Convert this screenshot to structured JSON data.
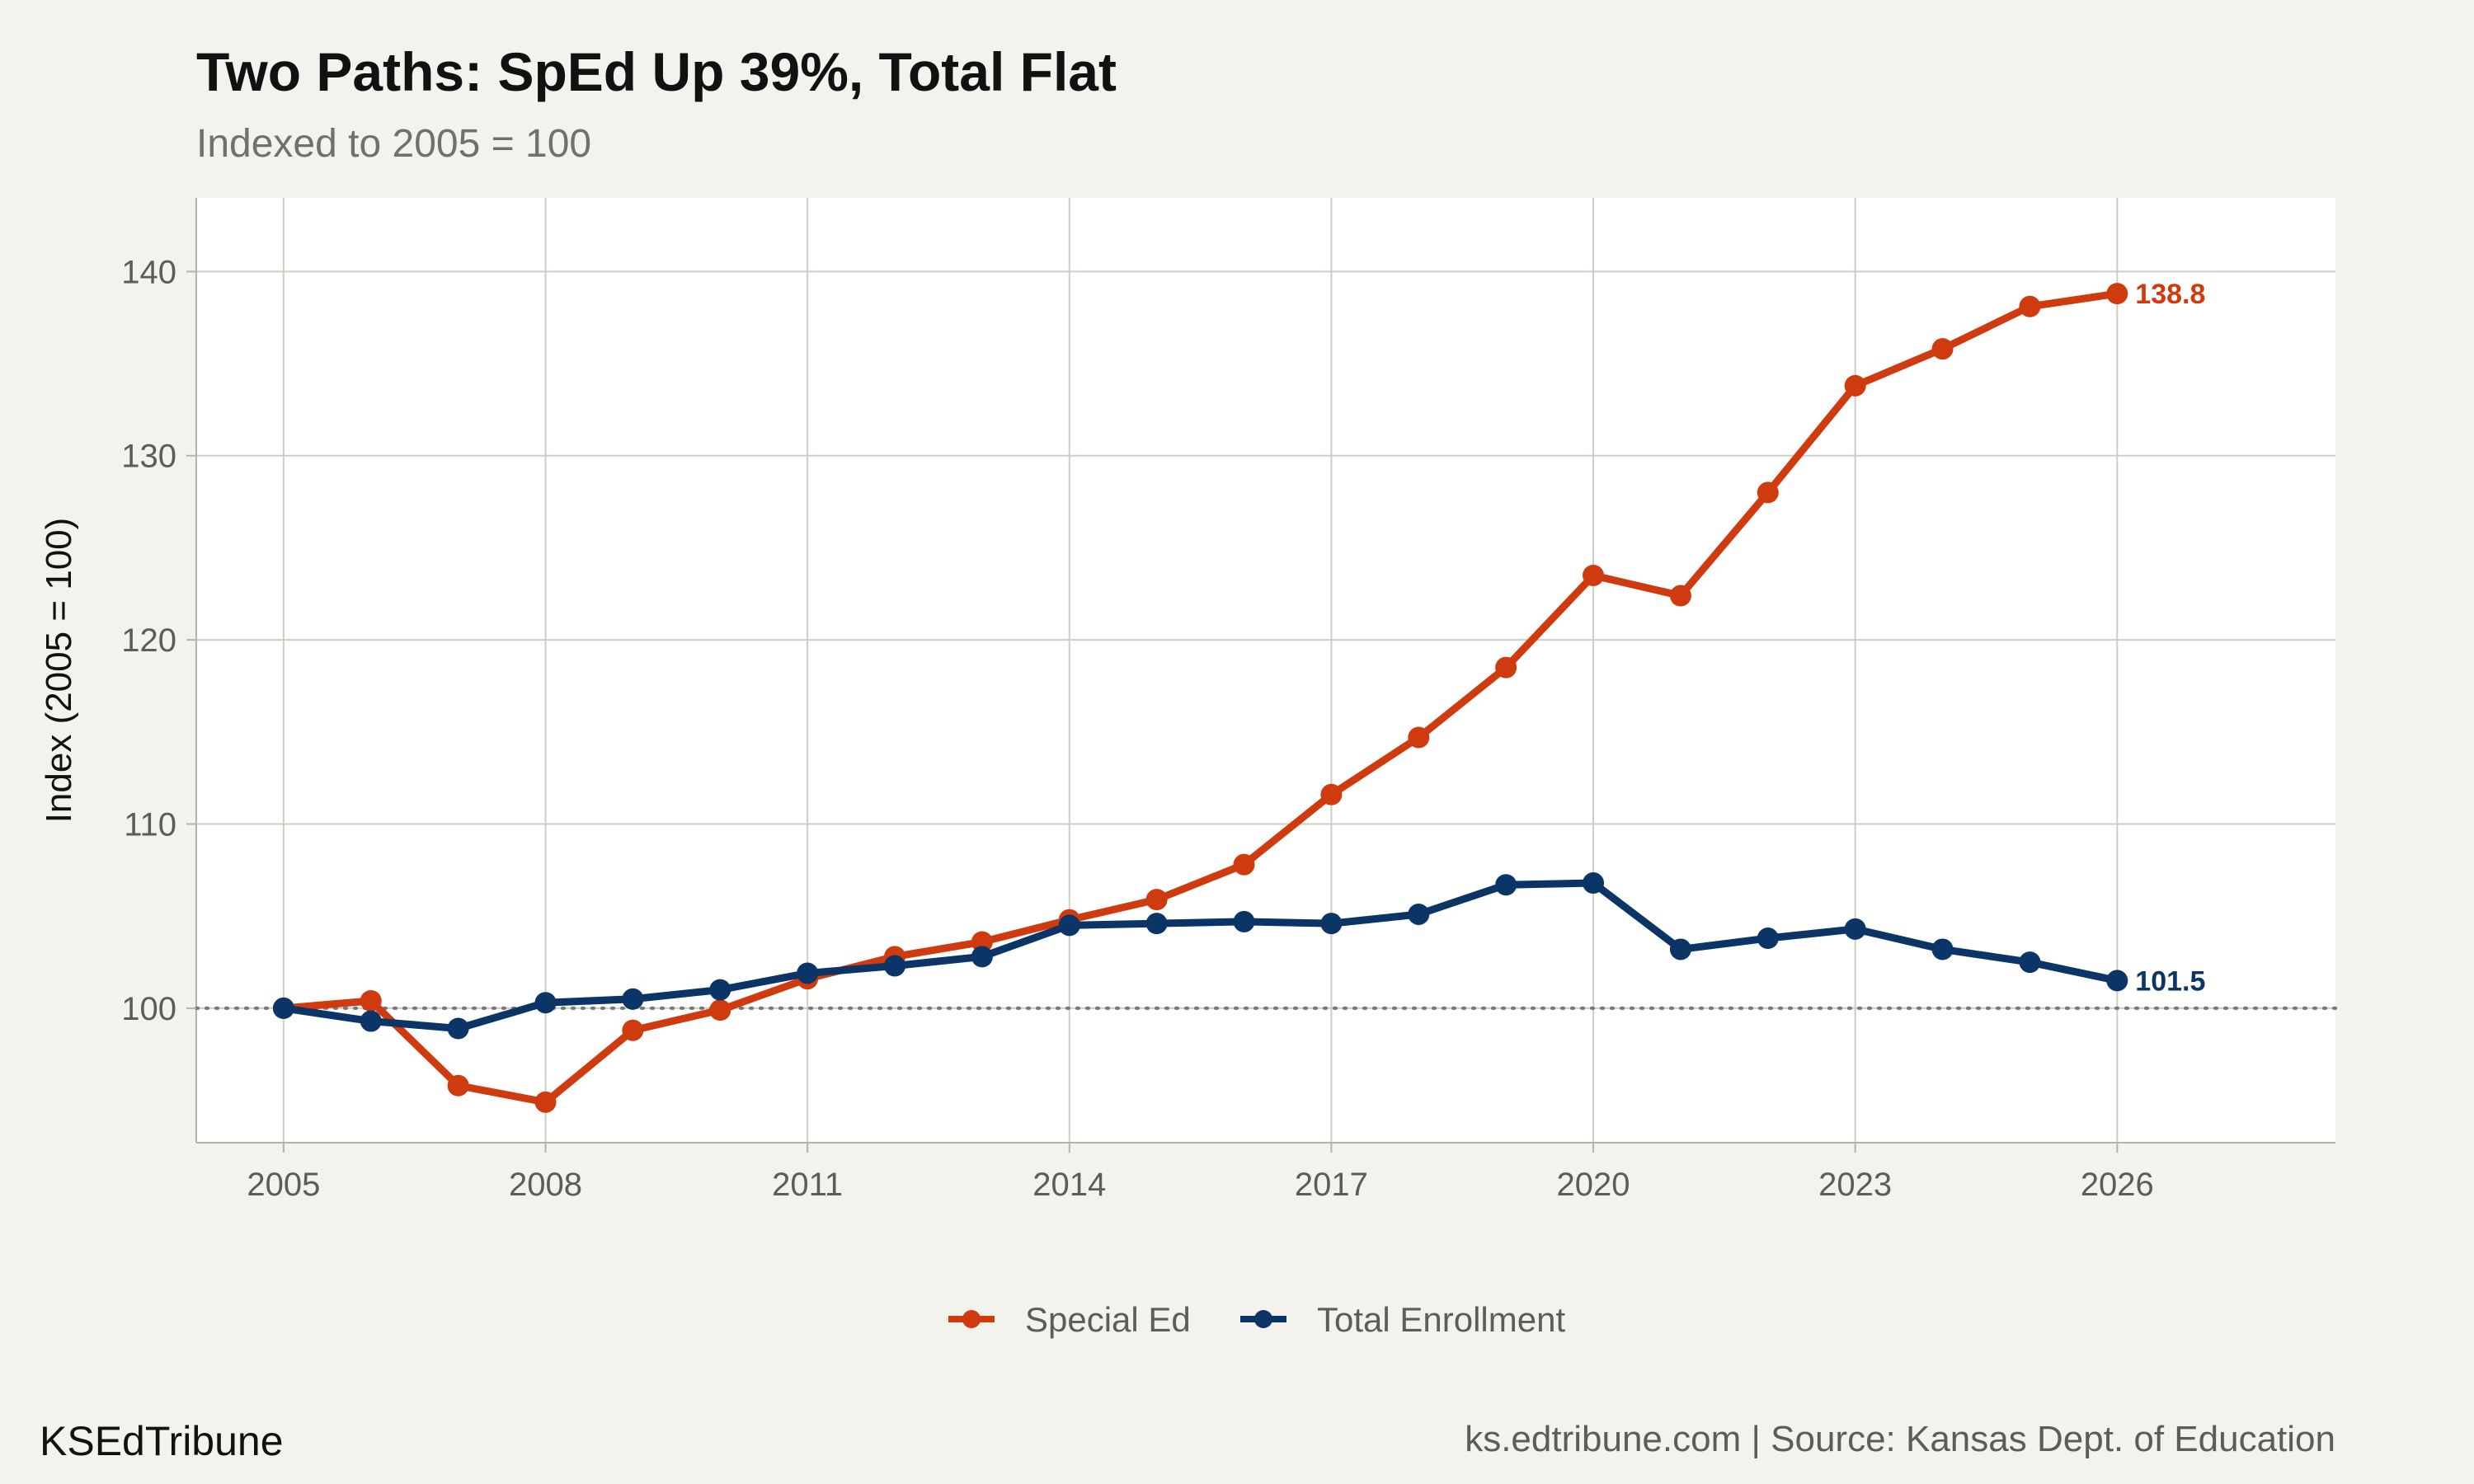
{
  "chart_data": {
    "type": "line",
    "title": "Two Paths: SpEd Up 39%, Total Flat",
    "subtitle": "Indexed to 2005 = 100",
    "ylabel": "Index (2005 = 100)",
    "xlabel": "",
    "x": [
      2005,
      2006,
      2007,
      2008,
      2009,
      2010,
      2011,
      2012,
      2013,
      2014,
      2015,
      2016,
      2017,
      2018,
      2019,
      2020,
      2021,
      2022,
      2023,
      2024,
      2025,
      2026
    ],
    "xlim": [
      2004,
      2028.5
    ],
    "x_ticks": [
      "2005",
      "2008",
      "2011",
      "2014",
      "2017",
      "2020",
      "2023",
      "2026"
    ],
    "ylim": [
      92.7,
      144
    ],
    "y_ticks": [
      "100",
      "110",
      "120",
      "130",
      "140"
    ],
    "grid": true,
    "reference_line": {
      "y": 100,
      "style": "dotted"
    },
    "legend_position": "bottom",
    "series": [
      {
        "name": "Special Ed",
        "color": "#cf3a0f",
        "values": [
          100.0,
          100.4,
          95.8,
          94.9,
          98.8,
          99.9,
          101.6,
          102.8,
          103.6,
          104.8,
          105.9,
          107.8,
          111.6,
          114.7,
          118.5,
          123.5,
          122.4,
          128.0,
          133.8,
          135.8,
          138.1,
          138.8
        ],
        "end_label": "138.8"
      },
      {
        "name": "Total Enrollment",
        "color": "#0b3566",
        "values": [
          100.0,
          99.3,
          98.9,
          100.3,
          100.5,
          101.0,
          101.9,
          102.3,
          102.8,
          104.5,
          104.6,
          104.7,
          104.6,
          105.1,
          106.7,
          106.8,
          103.2,
          103.8,
          104.3,
          103.2,
          102.5,
          101.5
        ],
        "end_label": "101.5"
      }
    ]
  },
  "caption": {
    "left": "KSEdTribune",
    "right": "ks.edtribune.com | Source: Kansas Dept. of Education"
  }
}
